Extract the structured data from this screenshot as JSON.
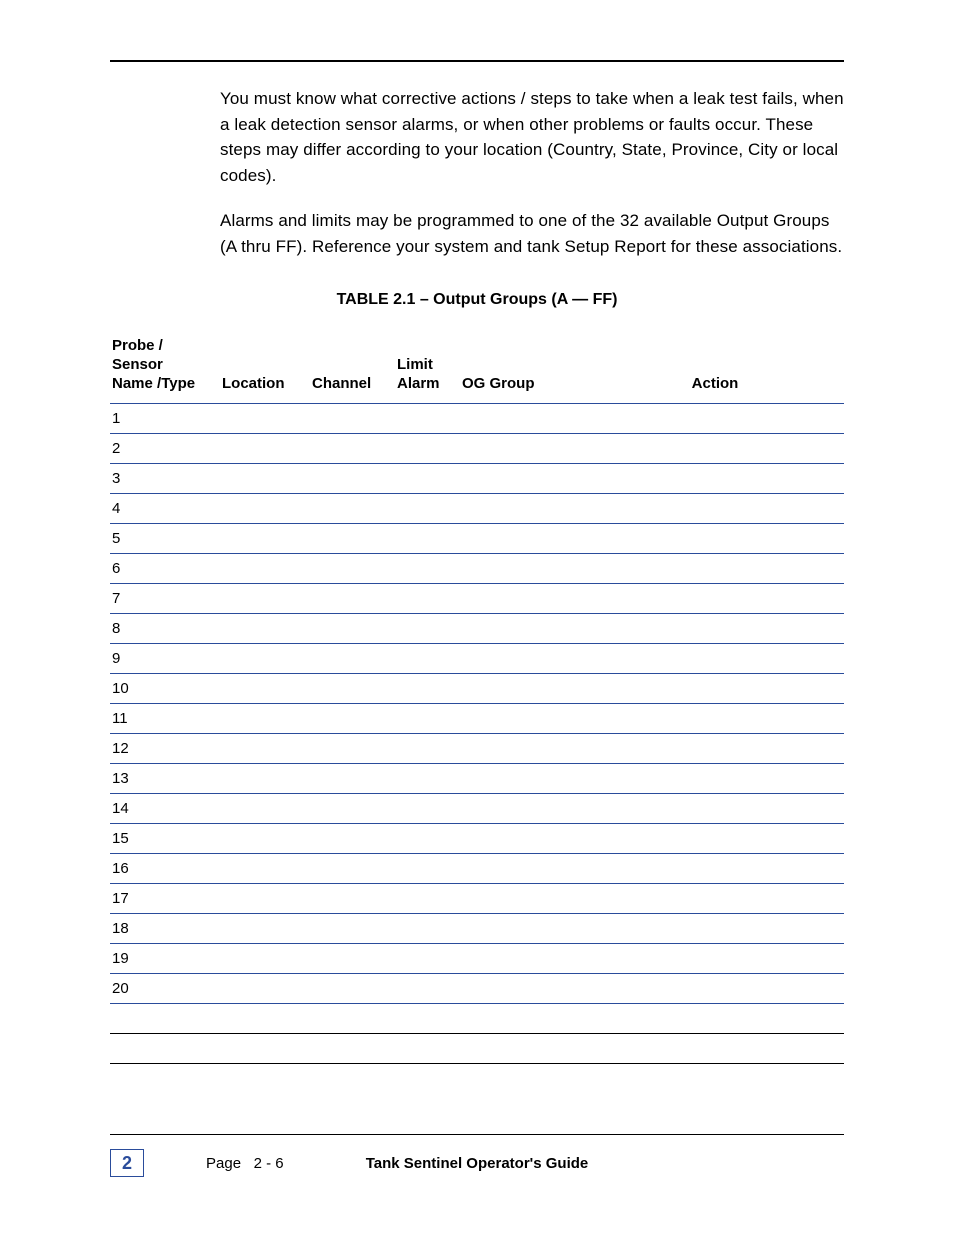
{
  "paragraphs": [
    "You must know what corrective actions / steps to take when a leak test fails, when a leak detection sensor alarms, or when other problems or faults occur.  These steps may differ according to your location (Country, State, Province, City or local codes).",
    "Alarms and limits may be programmed to one of the 32 available Output Groups (A thru FF).  Reference your system and tank Setup Report for these associations."
  ],
  "table": {
    "title": "TABLE 2.1 – Output Groups (A — FF)",
    "columns": {
      "probe": {
        "line1": "Probe / Sensor",
        "line2": "Name /Type"
      },
      "location": "Location",
      "channel": "Channel",
      "limit": {
        "line1": "Limit",
        "line2": "Alarm"
      },
      "og": "OG Group",
      "action": "Action"
    },
    "rule_color": "#2a4c9b",
    "rows": [
      "1",
      "2",
      "3",
      "4",
      "5",
      "6",
      "7",
      "8",
      "9",
      "10",
      "11",
      "12",
      "13",
      "14",
      "15",
      "16",
      "17",
      "18",
      "19",
      "20"
    ],
    "blank_rows_after": 2
  },
  "footer": {
    "chapter": "2",
    "page_label": "Page",
    "page_number": "2 - 6",
    "doc_title": "Tank Sentinel Operator's Guide"
  }
}
